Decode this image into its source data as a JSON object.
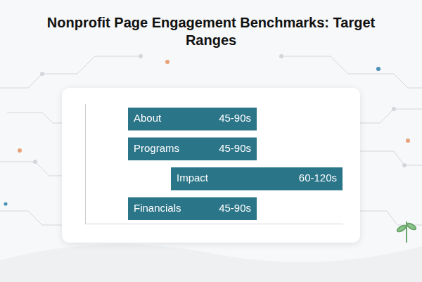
{
  "chart_data": {
    "type": "bar",
    "title": "Nonprofit Page Engagement Benchmarks: Target Ranges",
    "orientation": "horizontal",
    "categories": [
      "About",
      "Programs",
      "Impact",
      "Financials"
    ],
    "values": [
      [
        45,
        90
      ],
      [
        45,
        90
      ],
      [
        60,
        120
      ],
      [
        45,
        90
      ]
    ],
    "value_labels": [
      "45-90s",
      "45-90s",
      "60-120s",
      "45-90s"
    ],
    "color": "#2b7589",
    "xlim": [
      30,
      120
    ],
    "tick_labels": false,
    "data_labels": true,
    "grid": false
  }
}
